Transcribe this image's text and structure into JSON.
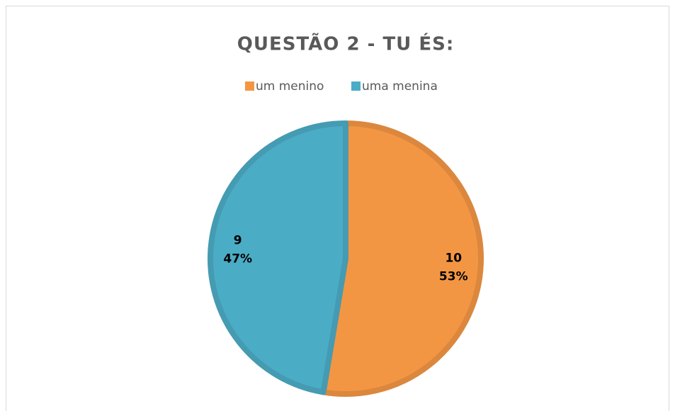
{
  "chart_data": {
    "type": "pie",
    "title": "QUESTÃO 2 - TU ÉS:",
    "series": [
      {
        "name": "um menino",
        "color": "#f39644",
        "values": [
          10
        ]
      },
      {
        "name": "uma menina",
        "color": "#4bacc6",
        "values": [
          9
        ]
      }
    ],
    "percent_labels": [
      "53%",
      "47%"
    ],
    "legend": "top"
  }
}
